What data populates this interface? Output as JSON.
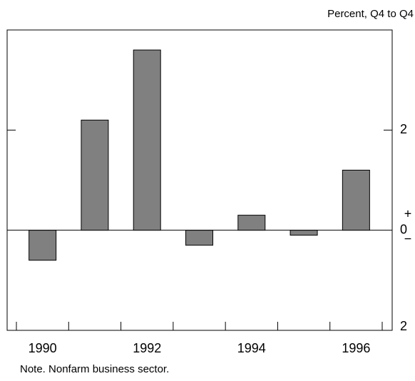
{
  "chart_data": {
    "type": "bar",
    "unit_label": "Percent, Q4 to Q4",
    "note": "Note.  Nonfarm business sector.",
    "categories": [
      "1990",
      null,
      "1992",
      null,
      "1994",
      null,
      "1996"
    ],
    "values": [
      -0.6,
      2.2,
      3.6,
      -0.3,
      0.3,
      -0.1,
      1.2
    ],
    "color": "#808080",
    "ylim": [
      -2,
      4
    ],
    "yticks": [
      {
        "value": -2,
        "label": "2"
      },
      0,
      2
    ],
    "zero_signs": [
      "+",
      "−"
    ]
  }
}
